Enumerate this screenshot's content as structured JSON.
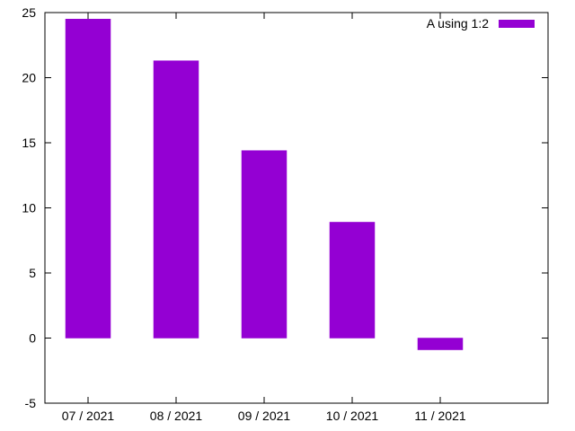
{
  "chart_data": {
    "type": "bar",
    "categories": [
      "07 / 2021",
      "08 / 2021",
      "09 / 2021",
      "10 / 2021",
      "11 / 2021"
    ],
    "series": [
      {
        "name": "A using 1:2",
        "values": [
          24.5,
          21.3,
          14.4,
          8.9,
          -0.9
        ],
        "color": "#9400D3"
      }
    ],
    "ylim": [
      -5,
      25
    ],
    "yticks": [
      -5,
      0,
      5,
      10,
      15,
      20,
      25
    ],
    "title": "",
    "xlabel": "",
    "ylabel": "",
    "grid": false,
    "legend": "top-right"
  }
}
